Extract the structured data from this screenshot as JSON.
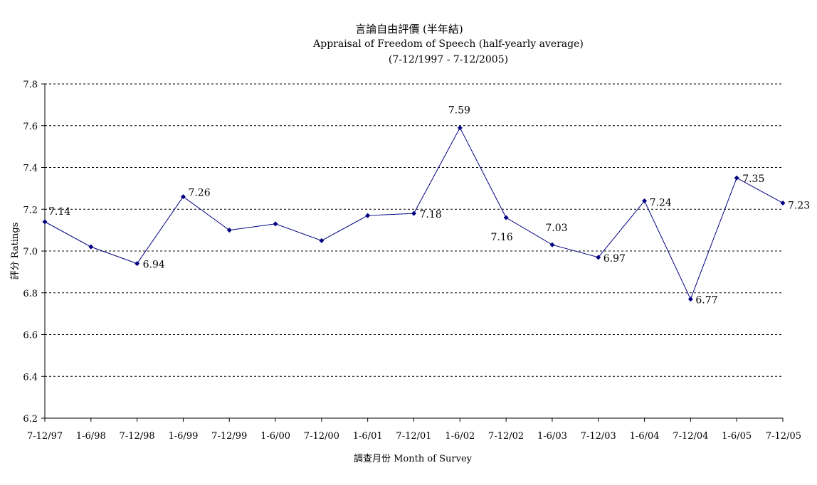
{
  "chart_data": {
    "type": "line",
    "title": "言論自由評價 (半年結)",
    "subtitle": "Appraisal of Freedom of Speech (half-yearly average)",
    "subtitle2": "(7-12/1997 - 7-12/2005)",
    "xlabel": "調查月份 Month of Survey",
    "ylabel": "評分 Ratings",
    "categories": [
      "7-12/97",
      "1-6/98",
      "7-12/98",
      "1-6/99",
      "7-12/99",
      "1-6/00",
      "7-12/00",
      "1-6/01",
      "7-12/01",
      "1-6/02",
      "7-12/02",
      "1-6/03",
      "7-12/03",
      "1-6/04",
      "7-12/04",
      "1-6/05",
      "7-12/05"
    ],
    "series": [
      {
        "values": [
          7.14,
          7.02,
          6.94,
          7.26,
          7.1,
          7.13,
          7.05,
          7.17,
          7.18,
          7.59,
          7.16,
          7.03,
          6.97,
          7.24,
          6.77,
          7.35,
          7.23
        ],
        "data_labels": [
          "7.14",
          "",
          "6.94",
          "7.26",
          "",
          "",
          "",
          "",
          "7.18",
          "7.59",
          "7.16",
          "7.03",
          "6.97",
          "7.24",
          "6.77",
          "7.35",
          "7.23"
        ],
        "color": "#000080"
      }
    ],
    "ylim": [
      6.2,
      7.8
    ],
    "yticks": [
      "6.2",
      "6.4",
      "6.6",
      "6.8",
      "7.0",
      "7.2",
      "7.4",
      "7.6",
      "7.8"
    ],
    "grid": "horizontal-dashed"
  }
}
